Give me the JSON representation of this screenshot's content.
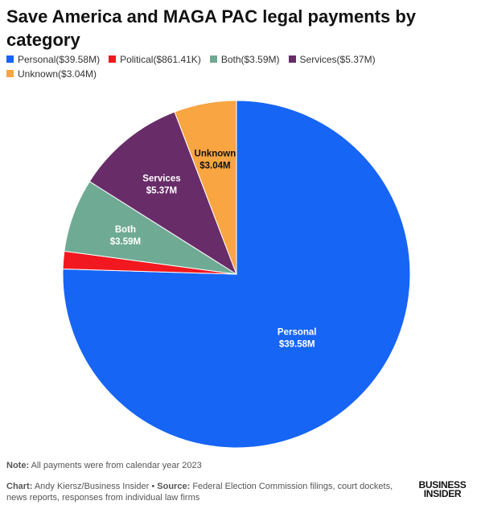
{
  "title": "Save America and MAGA PAC legal payments by category",
  "legend": [
    {
      "name": "Personal",
      "value": "($39.58M)",
      "color": "#1665f5"
    },
    {
      "name": "Political",
      "value": "($861.41K)",
      "color": "#f1191f"
    },
    {
      "name": "Both",
      "value": "($3.59M)",
      "color": "#6faa94"
    },
    {
      "name": "Services",
      "value": "($5.37M)",
      "color": "#682c69"
    },
    {
      "name": "Unknown",
      "value": "($3.04M)",
      "color": "#f8a542"
    }
  ],
  "chart_data": {
    "type": "pie",
    "title": "Save America and MAGA PAC legal payments by category",
    "slices": [
      {
        "label": "Personal",
        "value": 39.58,
        "value_label": "$39.58M",
        "color": "#1665f5",
        "label_color": "#ffffff",
        "show_label": true
      },
      {
        "label": "Political",
        "value": 0.86141,
        "value_label": "$861.41K",
        "color": "#f1191f",
        "label_color": "#ffffff",
        "show_label": false
      },
      {
        "label": "Both",
        "value": 3.59,
        "value_label": "$3.59M",
        "color": "#6faa94",
        "label_color": "#ffffff",
        "show_label": true
      },
      {
        "label": "Services",
        "value": 5.37,
        "value_label": "$5.37M",
        "color": "#682c69",
        "label_color": "#ffffff",
        "show_label": true
      },
      {
        "label": "Unknown",
        "value": 3.04,
        "value_label": "$3.04M",
        "color": "#f8a542",
        "label_color": "#111111",
        "show_label": true
      }
    ],
    "start": "12 o'clock",
    "direction": "clockwise",
    "legend_position": "top"
  },
  "note": {
    "label": "Note:",
    "text": "All payments were from calendar year 2023"
  },
  "credit": {
    "chart_label": "Chart:",
    "chart_text": "Andy Kiersz/Business Insider",
    "separator": "•",
    "source_label": "Source:",
    "source_text": "Federal Election Commission filings, court dockets, news reports, responses from individual law firms"
  },
  "logo": {
    "line1": "BUSINESS",
    "line2": "INSIDER"
  }
}
